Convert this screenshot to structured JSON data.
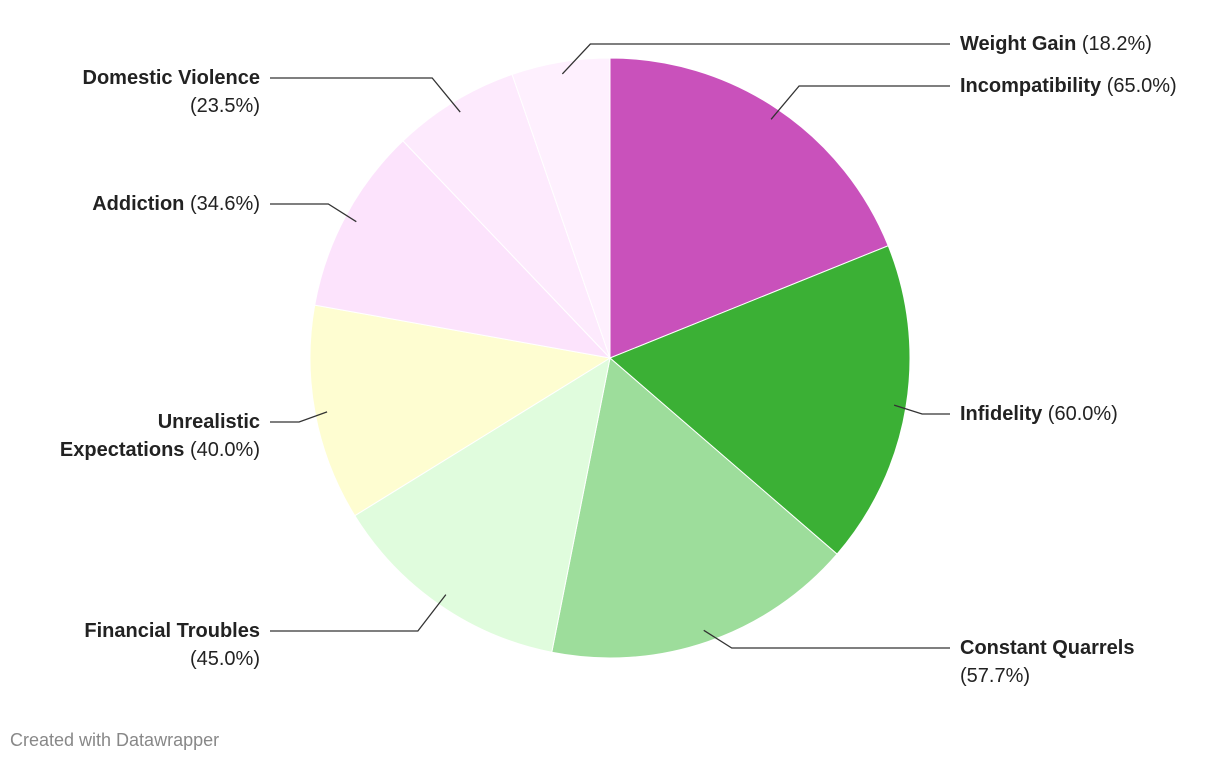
{
  "chart_data": {
    "type": "pie",
    "categories": [
      "Incompatibility",
      "Infidelity",
      "Constant Quarrels",
      "Financial Troubles",
      "Unrealistic Expectations",
      "Addiction",
      "Domestic Violence",
      "Weight Gain"
    ],
    "values": [
      65.0,
      60.0,
      57.7,
      45.0,
      40.0,
      34.6,
      23.5,
      18.2
    ],
    "value_labels": [
      "(65.0%)",
      "(60.0%)",
      "(57.7%)",
      "(45.0%)",
      "(40.0%)",
      "(34.6%)",
      "(23.5%)",
      "(18.2%)"
    ],
    "colors": [
      "#c951bb",
      "#3bb035",
      "#9ddd9b",
      "#e0fcdd",
      "#fefdd1",
      "#fce3fc",
      "#fdeafd",
      "#fef0fe"
    ],
    "source": "Created with Datawrapper"
  }
}
